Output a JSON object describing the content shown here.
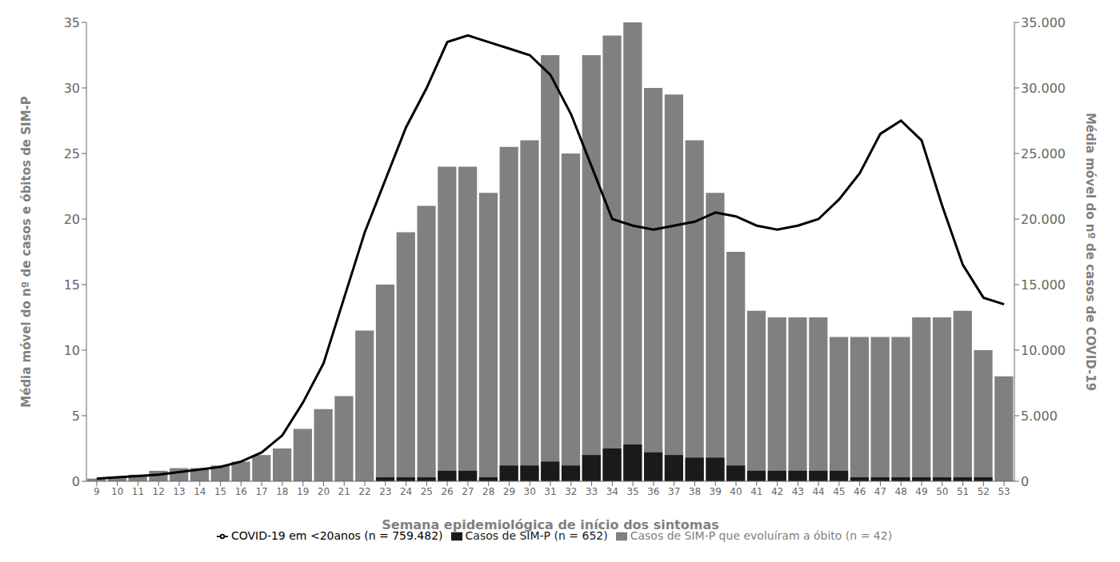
{
  "chart_data": {
    "type": "bar",
    "x": [
      9,
      10,
      11,
      12,
      13,
      14,
      15,
      16,
      17,
      18,
      19,
      20,
      21,
      22,
      23,
      24,
      25,
      26,
      27,
      28,
      29,
      30,
      31,
      32,
      33,
      34,
      35,
      36,
      37,
      38,
      39,
      40,
      41,
      42,
      43,
      44,
      45,
      46,
      47,
      48,
      49,
      50,
      51,
      52,
      53
    ],
    "xlim": [
      8.5,
      53.5
    ],
    "xticks": [
      9,
      10,
      11,
      12,
      13,
      14,
      15,
      16,
      17,
      18,
      19,
      20,
      21,
      22,
      23,
      24,
      25,
      26,
      27,
      28,
      29,
      30,
      31,
      32,
      33,
      34,
      35,
      36,
      37,
      38,
      39,
      40,
      41,
      42,
      43,
      44,
      45,
      46,
      47,
      48,
      49,
      50,
      51,
      52,
      53
    ],
    "ylim": [
      0,
      35
    ],
    "yticks": [
      0,
      5,
      10,
      15,
      20,
      25,
      30,
      35
    ],
    "y2lim": [
      0,
      35000
    ],
    "y2ticks": [
      {
        "value": 0,
        "label": "0"
      },
      {
        "value": 5000,
        "label": "5.000"
      },
      {
        "value": 10000,
        "label": "10.000"
      },
      {
        "value": 15000,
        "label": "15.000"
      },
      {
        "value": 20000,
        "label": "20.000"
      },
      {
        "value": 25000,
        "label": "25.000"
      },
      {
        "value": 30000,
        "label": "30.000"
      },
      {
        "value": 35000,
        "label": "35.000"
      }
    ],
    "xlabel": "Semana epidemiológica de início dos sintomas",
    "ylabel": "Média móvel do nº de casos e óbitos de SIM-P",
    "y2label": "Média móvel do nº de casos de COVID-19",
    "grid": false,
    "legend": "bottom",
    "series": [
      {
        "name": "Casos de SIM-P que evoluíram a óbito (n = 42)",
        "type": "bar",
        "color": "#808080",
        "values": [
          0.2,
          0.3,
          0.5,
          0.8,
          1.0,
          1.0,
          1.2,
          1.5,
          2.0,
          2.5,
          4.0,
          5.5,
          6.5,
          11.5,
          15.0,
          19.0,
          21.0,
          24.0,
          24.0,
          22.0,
          25.5,
          26.0,
          32.5,
          25.0,
          32.5,
          34.0,
          35.0,
          30.0,
          29.5,
          26.0,
          22.0,
          17.5,
          13.0,
          12.5,
          12.5,
          12.5,
          11.0,
          11.0,
          11.0,
          11.0,
          12.5,
          12.5,
          13.0,
          10.0,
          8.0
        ]
      },
      {
        "name": "Casos de SIM-P (n = 652)",
        "type": "bar",
        "color": "#1a1a1a",
        "values": [
          0.0,
          0.0,
          0.0,
          0.0,
          0.0,
          0.0,
          0.0,
          0.0,
          0.0,
          0.0,
          0.0,
          0.0,
          0.0,
          0.0,
          0.3,
          0.3,
          0.3,
          0.8,
          0.8,
          0.3,
          1.2,
          1.2,
          1.5,
          1.2,
          2.0,
          2.5,
          2.8,
          2.2,
          2.0,
          1.8,
          1.8,
          1.2,
          0.8,
          0.8,
          0.8,
          0.8,
          0.8,
          0.3,
          0.3,
          0.3,
          0.3,
          0.3,
          0.3,
          0.3,
          0.0
        ]
      },
      {
        "name": "COVID-19 em <20anos (n = 759.482)",
        "type": "line",
        "color": "#000000",
        "axis": "y2",
        "values": [
          200,
          300,
          400,
          500,
          700,
          900,
          1100,
          1500,
          2200,
          3500,
          6000,
          9000,
          14000,
          19000,
          23000,
          27000,
          30000,
          33500,
          34000,
          33500,
          33000,
          32500,
          31000,
          28000,
          24000,
          20000,
          19500,
          19200,
          19500,
          19800,
          20500,
          20200,
          19500,
          19200,
          19500,
          20000,
          21500,
          23500,
          26500,
          27500,
          26000,
          21000,
          16500,
          14000,
          13500
        ]
      }
    ]
  }
}
